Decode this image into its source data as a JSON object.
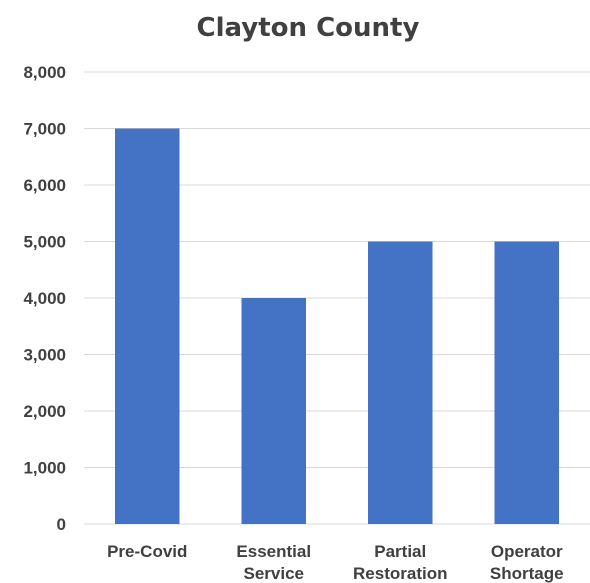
{
  "chart_data": {
    "type": "bar",
    "title": "Clayton County",
    "xlabel": "",
    "ylabel": "",
    "categories": [
      [
        "Pre-Covid"
      ],
      [
        "Essential",
        "Service"
      ],
      [
        "Partial",
        "Restoration"
      ],
      [
        "Operator",
        "Shortage"
      ]
    ],
    "values": [
      7000,
      4000,
      5000,
      5000
    ],
    "ylim": [
      0,
      8000
    ],
    "yticks": [
      "0",
      "1,000",
      "2,000",
      "3,000",
      "4,000",
      "5,000",
      "6,000",
      "7,000",
      "8,000"
    ],
    "grid": true,
    "legend": "none",
    "colors": {
      "bar": "#4472c4",
      "grid": "#d9d9d9",
      "text": "#404040"
    }
  }
}
